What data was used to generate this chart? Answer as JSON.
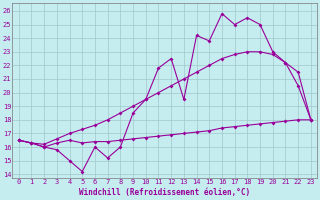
{
  "xlabel": "Windchill (Refroidissement éolien,°C)",
  "xlim_min": -0.5,
  "xlim_max": 23.5,
  "ylim_min": 13.7,
  "ylim_max": 26.6,
  "xticks": [
    0,
    1,
    2,
    3,
    4,
    5,
    6,
    7,
    8,
    9,
    10,
    11,
    12,
    13,
    14,
    15,
    16,
    17,
    18,
    19,
    20,
    21,
    22,
    23
  ],
  "yticks": [
    14,
    15,
    16,
    17,
    18,
    19,
    20,
    21,
    22,
    23,
    24,
    25,
    26
  ],
  "bg_color": "#c5edf0",
  "grid_color": "#a0c8cc",
  "line_color": "#990099",
  "line1_x": [
    0,
    1,
    2,
    3,
    4,
    5,
    6,
    7,
    8,
    9,
    10,
    11,
    12,
    13,
    14,
    15,
    16,
    17,
    18,
    19,
    20,
    21,
    22,
    23
  ],
  "line1_y": [
    16.5,
    16.3,
    16.0,
    15.8,
    15.0,
    14.2,
    16.0,
    15.2,
    16.0,
    18.5,
    19.5,
    21.8,
    22.5,
    19.5,
    24.2,
    23.8,
    25.8,
    25.0,
    25.5,
    25.0,
    23.0,
    22.2,
    20.5,
    18.0
  ],
  "line2_x": [
    0,
    1,
    2,
    3,
    4,
    5,
    6,
    7,
    8,
    9,
    10,
    11,
    12,
    13,
    14,
    15,
    16,
    17,
    18,
    19,
    20,
    21,
    22,
    23
  ],
  "line2_y": [
    16.5,
    16.3,
    16.2,
    16.6,
    17.0,
    17.3,
    17.6,
    18.0,
    18.5,
    19.0,
    19.5,
    20.0,
    20.5,
    21.0,
    21.5,
    22.0,
    22.5,
    22.8,
    23.0,
    23.0,
    22.8,
    22.2,
    21.5,
    18.0
  ],
  "line3_x": [
    0,
    1,
    2,
    3,
    4,
    5,
    6,
    7,
    8,
    9,
    10,
    11,
    12,
    13,
    14,
    15,
    16,
    17,
    18,
    19,
    20,
    21,
    22,
    23
  ],
  "line3_y": [
    16.5,
    16.3,
    16.0,
    16.3,
    16.5,
    16.3,
    16.4,
    16.4,
    16.5,
    16.6,
    16.7,
    16.8,
    16.9,
    17.0,
    17.1,
    17.2,
    17.4,
    17.5,
    17.6,
    17.7,
    17.8,
    17.9,
    18.0,
    18.0
  ],
  "markersize": 2.0,
  "linewidth": 0.8,
  "tick_fontsize": 5.0,
  "xlabel_fontsize": 5.5
}
